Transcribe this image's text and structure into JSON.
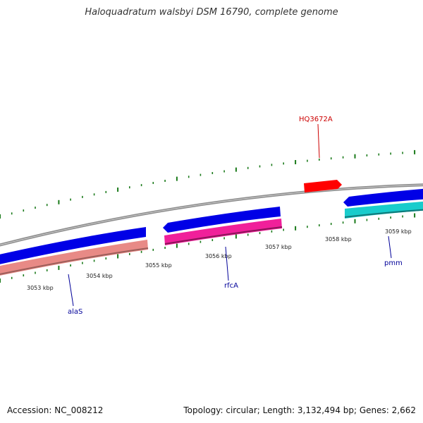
{
  "title": "Haloquadratum walsbyi DSM 16790, complete genome",
  "footer": {
    "accession": "Accession: NC_008212",
    "summary": "Topology: circular; Length: 3,132,494 bp; Genes: 2,662"
  },
  "colors": {
    "backbone": "#8c8c8c",
    "tick_green": "#1a7a1a",
    "forward_cds": "#0000e6",
    "reverse_gene": "#e88a86",
    "reverse_rna": "#f0209a",
    "reverse_cyan": "#19cccc",
    "highlight_gene": "#ff0000",
    "label_blue": "#000099",
    "label_red": "#cc0000"
  },
  "scale_labels": [
    "3053 kbp",
    "3054 kbp",
    "3055 kbp",
    "3056 kbp",
    "3057 kbp",
    "3058 kbp",
    "3059 kbp"
  ],
  "gene_labels": [
    {
      "name": "HQ3672A",
      "color": "#cc0000"
    },
    {
      "name": "alaS",
      "color": "#000099"
    },
    {
      "name": "rfcA",
      "color": "#000099"
    },
    {
      "name": "pmm",
      "color": "#000099"
    }
  ]
}
